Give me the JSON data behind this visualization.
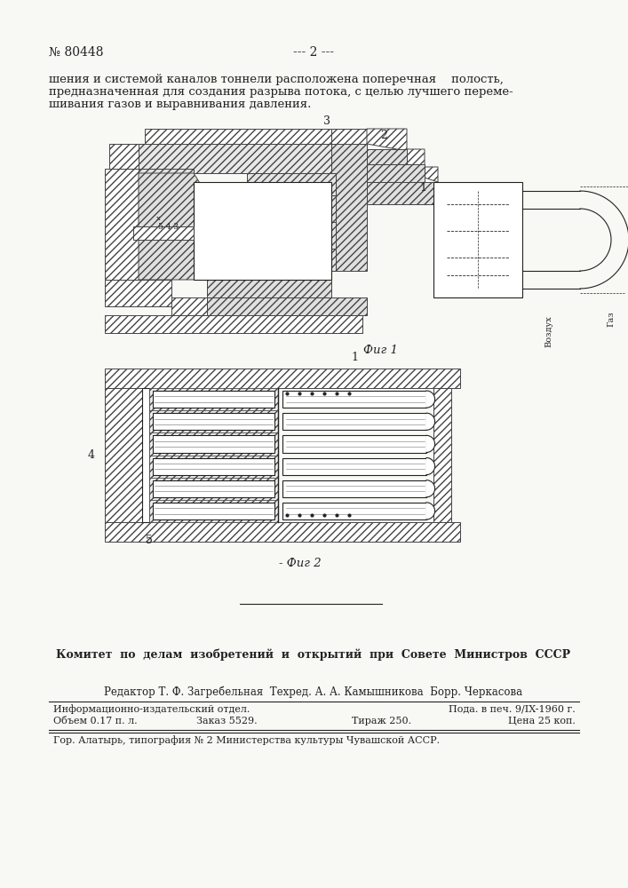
{
  "page_color": "#f8f8f5",
  "header_num": "№ 80448",
  "header_page": "--- 2 ---",
  "body_text_lines": [
    "шения и системой каналов тоннели расположена поперечная    полость,",
    "предназначенная для создания разрыва потока, с целью лучшего переме-",
    "шивания газов и выравнивания давления."
  ],
  "fig1_caption": "Фиг 1",
  "fig2_caption": "Фиг 2",
  "footer_committee": "Комитет  по  делам  изобретений  и  открытий  при  Совете  Министров  СССР",
  "footer_editor": "Редактор Т. Ф. Загребельная  Техред. А. А. Камышникова  Борр. Черкасова",
  "footer_line1_left": "Информационно-издательский отдел.",
  "footer_line1_right": "Пода. в печ. 9/IX-1960 г.",
  "footer_line2_left": "Объем 0.17 п. л.",
  "footer_line2_mid": "Заказ 5529.",
  "footer_line2_right2": "Тираж 250.",
  "footer_line2_price": "Цена 25 коп.",
  "footer_printer": "Гор. Алатырь, типография № 2 Министерства культуры Чувашской АССР.",
  "hatch_color": "#444444",
  "line_color": "#222222"
}
